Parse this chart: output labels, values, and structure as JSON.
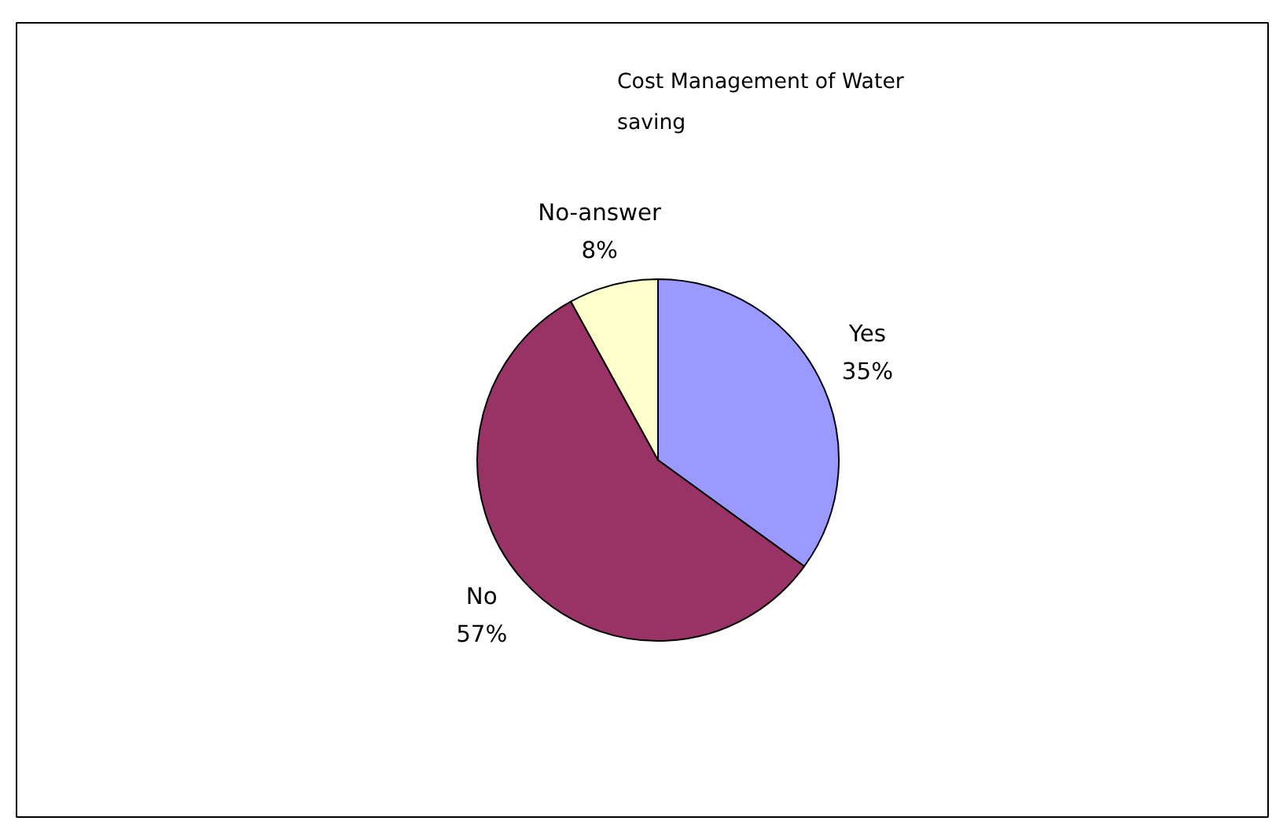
{
  "chart_data": {
    "type": "pie",
    "title": "Cost Management of Water saving",
    "categories": [
      "Yes",
      "No",
      "No-answer"
    ],
    "values": [
      35,
      57,
      8
    ],
    "colors": [
      "#9999ff",
      "#993366",
      "#ffffcc"
    ],
    "value_labels": [
      "35%",
      "57%",
      "8%"
    ],
    "legend": false
  }
}
